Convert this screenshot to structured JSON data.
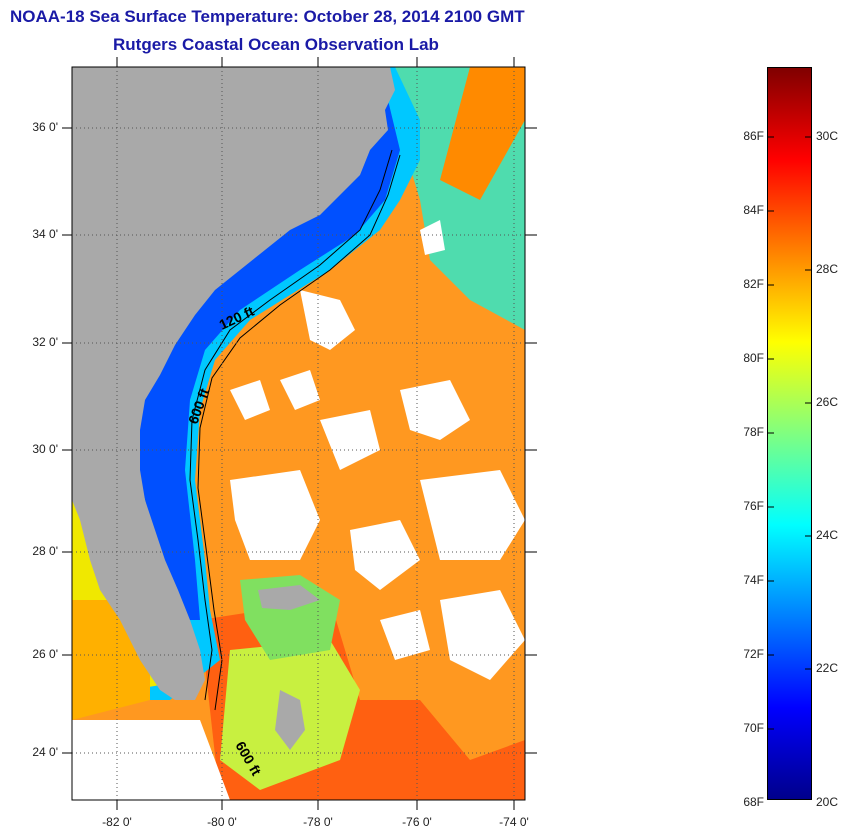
{
  "header": {
    "title": "NOAA-18 Sea Surface Temperature:  October 28, 2014 2100 GMT",
    "subtitle": "Rutgers Coastal Ocean Observation Lab"
  },
  "map": {
    "lat_labels": [
      "36 0'",
      "34 0'",
      "32 0'",
      "30 0'",
      "28 0'",
      "26 0'",
      "24 0'"
    ],
    "lon_labels": [
      "-82 0'",
      "-80 0'",
      "-78 0'",
      "-76 0'",
      "-74 0'"
    ],
    "contour_labels": [
      "120 ft",
      "600 ft",
      "600 ft"
    ],
    "colors": {
      "land": "#a9a9a9",
      "cloud": "#ffffff",
      "grid": "#555555"
    }
  },
  "colorbar": {
    "fahrenheit_labels": [
      "86F",
      "84F",
      "82F",
      "80F",
      "78F",
      "76F",
      "74F",
      "72F",
      "70F",
      "68F"
    ],
    "celsius_labels": [
      "30C",
      "28C",
      "26C",
      "24C",
      "22C",
      "20C"
    ],
    "colors": [
      "#00008b",
      "#0000ff",
      "#0080ff",
      "#00ffff",
      "#80ff80",
      "#ffff00",
      "#ff8000",
      "#ff0000",
      "#800000"
    ]
  }
}
